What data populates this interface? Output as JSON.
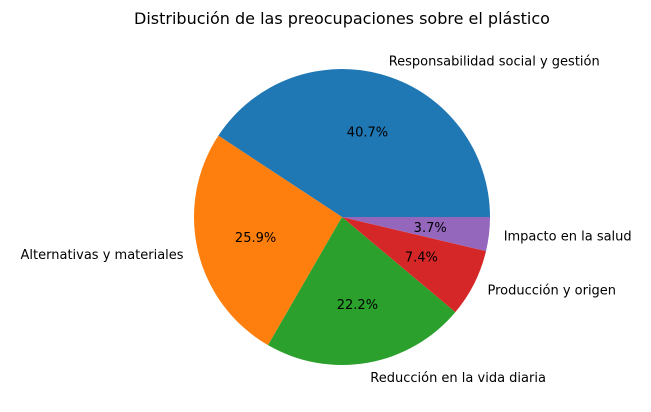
{
  "chart_data": {
    "type": "pie",
    "title": "Distribución de las preocupaciones sobre el plástico",
    "slices": [
      {
        "label": "Responsabilidad social y gestión",
        "value": 40.7,
        "pct_label": "40.7%",
        "color": "#1f77b4"
      },
      {
        "label": "Alternativas y materiales",
        "value": 25.9,
        "pct_label": "25.9%",
        "color": "#ff7f0e"
      },
      {
        "label": "Reducción en la vida diaria",
        "value": 22.2,
        "pct_label": "22.2%",
        "color": "#2ca02c"
      },
      {
        "label": "Producción y origen",
        "value": 7.4,
        "pct_label": "7.4%",
        "color": "#d62728"
      },
      {
        "label": "Impacto en la salud",
        "value": 3.7,
        "pct_label": "3.7%",
        "color": "#9467bd"
      }
    ],
    "start_angle_deg": 0,
    "direction": "counterclockwise"
  }
}
